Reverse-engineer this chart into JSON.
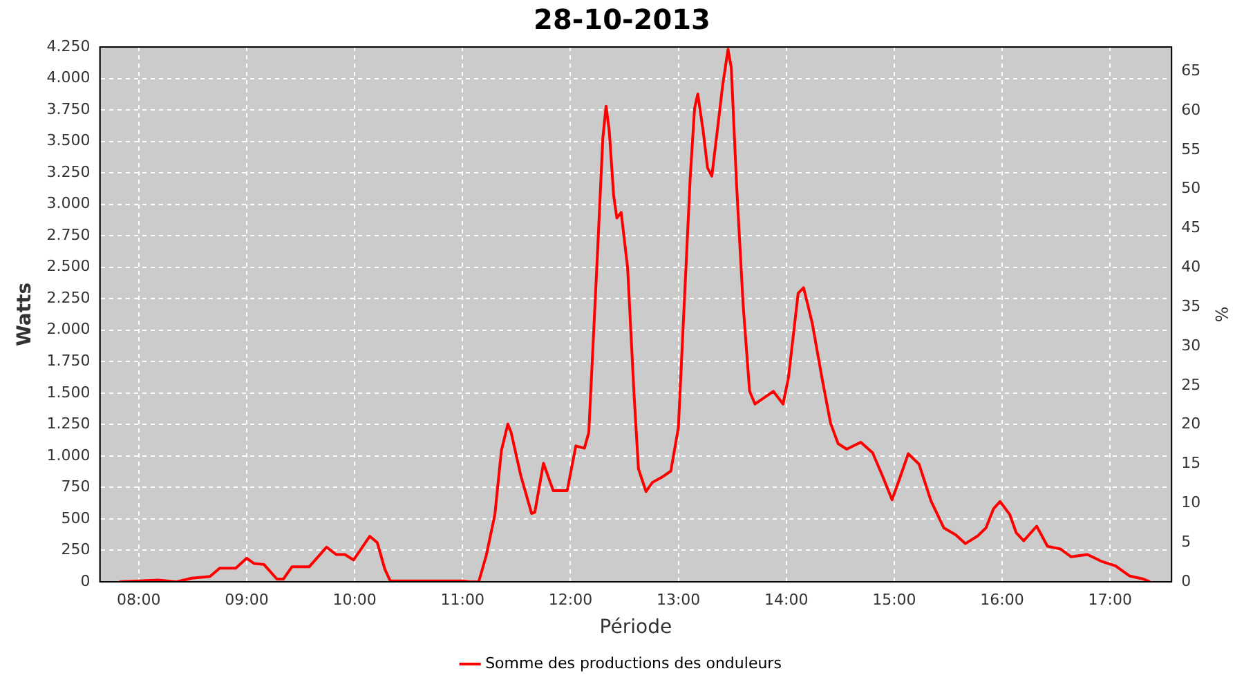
{
  "chart_data": {
    "type": "line",
    "title": "28-10-2013",
    "xlabel": "Période",
    "ylabel": "Watts",
    "y2label": "%",
    "xlim": [
      7.64,
      17.57
    ],
    "xticks": [
      {
        "value": 8,
        "label": "08:00"
      },
      {
        "value": 9,
        "label": "09:00"
      },
      {
        "value": 10,
        "label": "10:00"
      },
      {
        "value": 11,
        "label": "11:00"
      },
      {
        "value": 12,
        "label": "12:00"
      },
      {
        "value": 13,
        "label": "13:00"
      },
      {
        "value": 14,
        "label": "14:00"
      },
      {
        "value": 15,
        "label": "15:00"
      },
      {
        "value": 16,
        "label": "16:00"
      },
      {
        "value": 17,
        "label": "17:00"
      }
    ],
    "ylim": [
      0,
      4250
    ],
    "yticks": [
      0,
      250,
      500,
      750,
      {
        "value": 1000,
        "label": "1.000"
      },
      {
        "value": 1250,
        "label": "1.250"
      },
      {
        "value": 1500,
        "label": "1.500"
      },
      {
        "value": 1750,
        "label": "1.750"
      },
      {
        "value": 2000,
        "label": "2.000"
      },
      {
        "value": 2250,
        "label": "2.250"
      },
      {
        "value": 2500,
        "label": "2.500"
      },
      {
        "value": 2750,
        "label": "2.750"
      },
      {
        "value": 3000,
        "label": "3.000"
      },
      {
        "value": 3250,
        "label": "3.250"
      },
      {
        "value": 3500,
        "label": "3.500"
      },
      {
        "value": 3750,
        "label": "3.750"
      },
      {
        "value": 4000,
        "label": "4.000"
      },
      {
        "value": 4250,
        "label": "4.250"
      }
    ],
    "y2lim": [
      0,
      68.1
    ],
    "y2ticks": [
      0,
      5,
      10,
      15,
      20,
      25,
      30,
      35,
      40,
      45,
      50,
      55,
      60,
      65
    ],
    "grid": true,
    "legend": "bottom",
    "marker": "none",
    "line_style": "solid",
    "series": [
      {
        "name": "Somme des productions des onduleurs",
        "color": "#ff0000",
        "x": [
          7.82,
          8.18,
          8.35,
          8.49,
          8.66,
          8.75,
          8.9,
          9.0,
          9.07,
          9.16,
          9.28,
          9.34,
          9.42,
          9.58,
          9.74,
          9.83,
          9.91,
          9.99,
          10.14,
          10.21,
          10.28,
          10.33,
          10.49,
          11.0,
          11.07,
          11.15,
          11.22,
          11.3,
          11.36,
          11.42,
          11.45,
          11.54,
          11.64,
          11.67,
          11.75,
          11.84,
          11.97,
          12.05,
          12.13,
          12.17,
          12.25,
          12.3,
          12.33,
          12.36,
          12.4,
          12.43,
          12.47,
          12.53,
          12.59,
          12.63,
          12.7,
          12.76,
          12.85,
          12.93,
          13.0,
          13.04,
          13.11,
          13.15,
          13.18,
          13.23,
          13.27,
          13.31,
          13.36,
          13.41,
          13.46,
          13.49,
          13.54,
          13.6,
          13.66,
          13.71,
          13.88,
          13.97,
          14.02,
          14.11,
          14.16,
          14.24,
          14.33,
          14.41,
          14.48,
          14.56,
          14.69,
          14.8,
          14.89,
          14.98,
          15.06,
          15.13,
          15.23,
          15.34,
          15.46,
          15.57,
          15.66,
          15.77,
          15.85,
          15.92,
          15.98,
          16.07,
          16.13,
          16.2,
          16.32,
          16.42,
          16.54,
          16.64,
          16.79,
          16.92,
          17.05,
          17.18,
          17.31,
          17.37
        ],
        "values": [
          0,
          14,
          0,
          29,
          43,
          109,
          109,
          188,
          145,
          138,
          22,
          22,
          120,
          120,
          275,
          217,
          217,
          174,
          362,
          312,
          101,
          7,
          7,
          7,
          0,
          0,
          210,
          536,
          1043,
          1254,
          1188,
          844,
          543,
          554,
          942,
          725,
          725,
          1080,
          1062,
          1188,
          2601,
          3525,
          3779,
          3580,
          3072,
          2891,
          2935,
          2493,
          1478,
          898,
          717,
          790,
          833,
          880,
          1225,
          1949,
          3217,
          3761,
          3877,
          3580,
          3290,
          3224,
          3580,
          3942,
          4232,
          4087,
          3145,
          2203,
          1514,
          1413,
          1514,
          1413,
          1623,
          2293,
          2337,
          2058,
          1623,
          1261,
          1098,
          1054,
          1109,
          1025,
          844,
          652,
          844,
          1018,
          935,
          645,
          428,
          373,
          304,
          362,
          428,
          580,
          638,
          536,
          391,
          326,
          442,
          283,
          261,
          199,
          217,
          163,
          127,
          47,
          22,
          0
        ]
      }
    ]
  }
}
